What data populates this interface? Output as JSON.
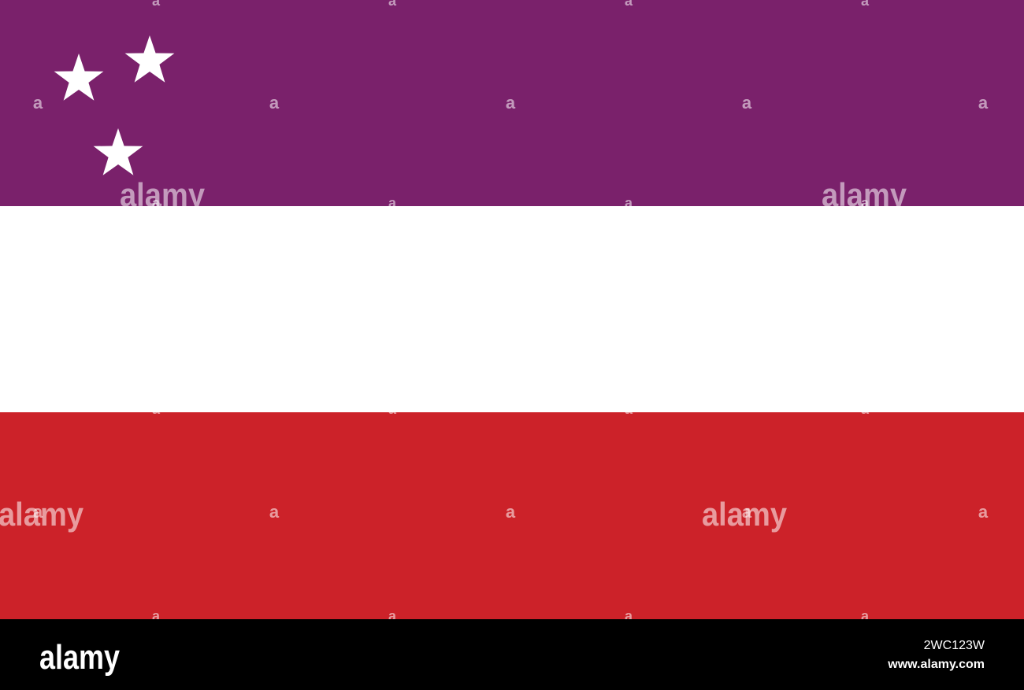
{
  "watermark": {
    "word": "alamy",
    "letter": "a"
  },
  "footer": {
    "logo": "alamy",
    "image_id": "2WC123W",
    "url": "www.alamy.com"
  }
}
